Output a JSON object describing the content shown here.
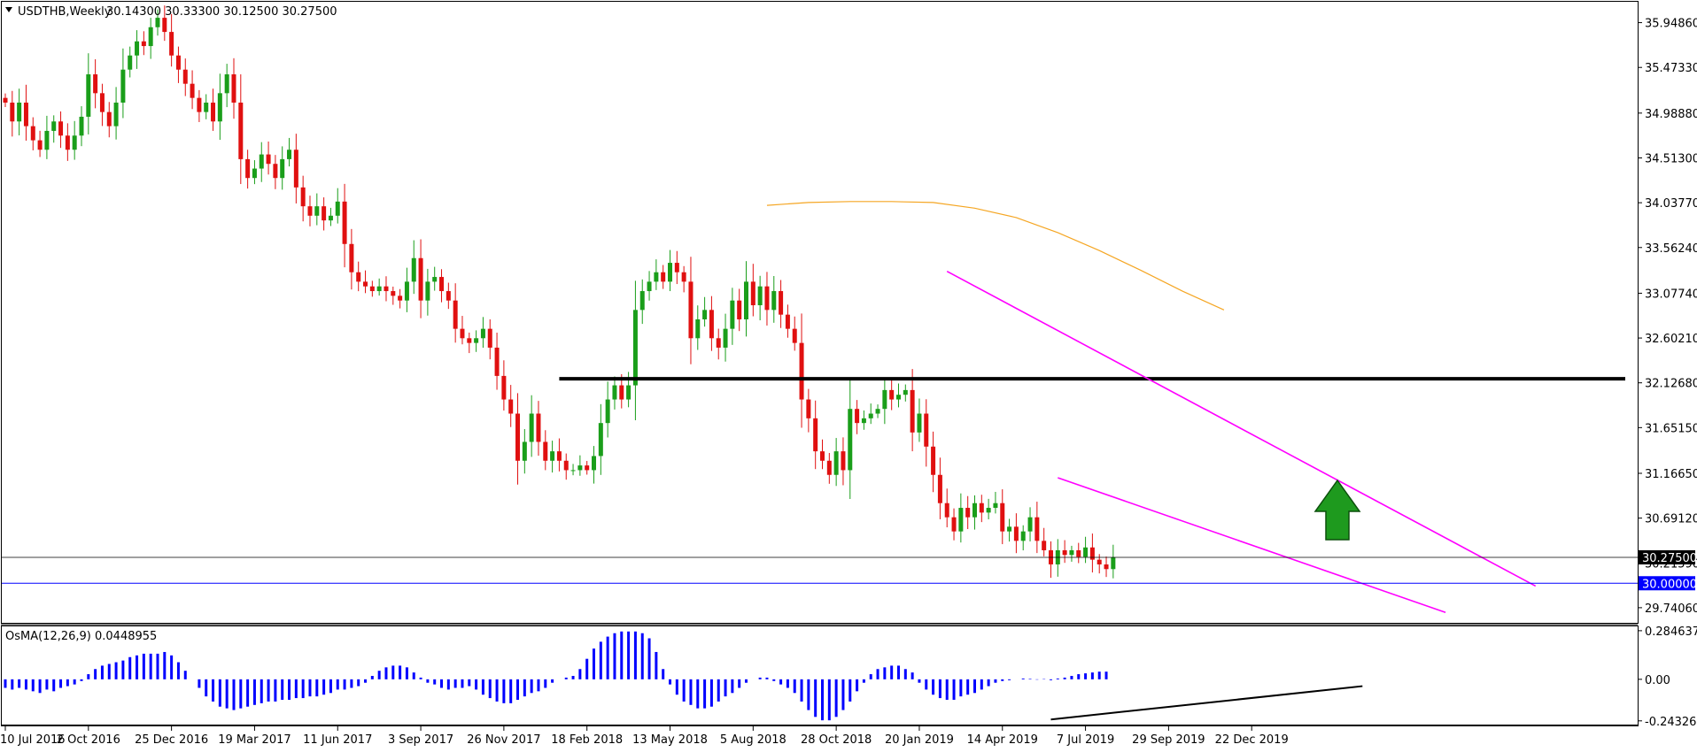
{
  "header": {
    "symbol": "USDTHB,Weekly",
    "ohlc": "30.14300 30.33300 30.12500 30.27500",
    "osma_label": "OsMA(12,26,9) 0.0448955"
  },
  "chart_data": [
    {
      "type": "candlestick",
      "name": "USDTHB,Weekly",
      "x_labels": [
        "10 Jul 2016",
        "2 Oct 2016",
        "25 Dec 2016",
        "19 Mar 2017",
        "11 Jun 2017",
        "3 Sep 2017",
        "26 Nov 2017",
        "18 Feb 2018",
        "13 May 2018",
        "5 Aug 2018",
        "28 Oct 2018",
        "20 Jan 2019",
        "14 Apr 2019",
        "7 Jul 2019",
        "29 Sep 2019",
        "22 Dec 2019"
      ],
      "y_ticks": [
        "35.94860",
        "35.47330",
        "34.98880",
        "34.51300",
        "34.03770",
        "33.56240",
        "33.07740",
        "32.60210",
        "32.12680",
        "31.65150",
        "31.16650",
        "30.69120",
        "30.21590",
        "29.74060"
      ],
      "ylim": [
        29.58,
        36.17
      ],
      "bull_color": "#1a9e1a",
      "bear_color": "#e01010",
      "closes": [
        35.1,
        34.9,
        35.1,
        34.85,
        34.7,
        34.6,
        34.8,
        34.9,
        34.75,
        34.6,
        34.75,
        34.95,
        35.4,
        35.2,
        35.0,
        34.85,
        35.1,
        35.45,
        35.6,
        35.75,
        35.7,
        35.9,
        36.0,
        35.85,
        35.6,
        35.45,
        35.3,
        35.15,
        35.0,
        35.1,
        34.9,
        35.2,
        35.4,
        35.1,
        34.5,
        34.3,
        34.4,
        34.55,
        34.45,
        34.3,
        34.5,
        34.6,
        34.2,
        34.0,
        33.9,
        34.0,
        33.85,
        33.9,
        34.05,
        33.6,
        33.3,
        33.2,
        33.15,
        33.1,
        33.15,
        33.1,
        33.05,
        33.0,
        33.2,
        33.45,
        33.0,
        33.2,
        33.25,
        33.1,
        33.0,
        32.7,
        32.6,
        32.55,
        32.6,
        32.7,
        32.5,
        32.2,
        31.95,
        31.8,
        31.3,
        31.5,
        31.8,
        31.5,
        31.3,
        31.4,
        31.3,
        31.2,
        31.2,
        31.25,
        31.2,
        31.35,
        31.7,
        31.95,
        32.1,
        31.95,
        32.1,
        32.9,
        33.1,
        33.2,
        33.3,
        33.2,
        33.4,
        33.3,
        33.2,
        32.6,
        32.8,
        32.9,
        32.6,
        32.5,
        32.7,
        33.0,
        32.8,
        33.2,
        32.95,
        33.15,
        32.9,
        33.1,
        32.85,
        32.7,
        32.55,
        31.95,
        31.75,
        31.4,
        31.3,
        31.15,
        31.4,
        31.2,
        31.85,
        31.7,
        31.75,
        31.8,
        31.85,
        32.05,
        31.95,
        32.0,
        32.05,
        31.6,
        31.8,
        31.45,
        31.15,
        30.85,
        30.7,
        30.55,
        30.8,
        30.7,
        30.85,
        30.75,
        30.8,
        30.85,
        30.55,
        30.6,
        30.45,
        30.55,
        30.7,
        30.45,
        30.35,
        30.2,
        30.35,
        30.3,
        30.35,
        30.28,
        30.38,
        30.25,
        30.2,
        30.15,
        30.275
      ]
    },
    {
      "type": "line",
      "name": "moving-average",
      "color": "#f5a623",
      "x_weeks": [
        110,
        116,
        122,
        128,
        134,
        140,
        146,
        152,
        158,
        164,
        170,
        176
      ],
      "values": [
        34.01,
        34.04,
        34.05,
        34.05,
        34.04,
        33.98,
        33.88,
        33.72,
        33.53,
        33.32,
        33.1,
        32.9
      ]
    },
    {
      "type": "histogram",
      "name": "OsMA(12,26,9)",
      "value": 0.0448955,
      "color": "#0000ff",
      "y_ticks": [
        "0.2846379",
        "0.00",
        "-0.2432632"
      ],
      "ylim": [
        -0.265,
        0.31
      ],
      "values": [
        -0.05,
        -0.06,
        -0.05,
        -0.06,
        -0.07,
        -0.08,
        -0.06,
        -0.07,
        -0.05,
        -0.04,
        -0.03,
        -0.01,
        0.03,
        0.06,
        0.08,
        0.09,
        0.1,
        0.11,
        0.13,
        0.14,
        0.15,
        0.15,
        0.15,
        0.16,
        0.14,
        0.1,
        0.05,
        0.0,
        -0.05,
        -0.1,
        -0.13,
        -0.16,
        -0.17,
        -0.18,
        -0.17,
        -0.16,
        -0.15,
        -0.14,
        -0.13,
        -0.13,
        -0.12,
        -0.12,
        -0.11,
        -0.11,
        -0.1,
        -0.1,
        -0.09,
        -0.08,
        -0.06,
        -0.06,
        -0.05,
        -0.04,
        -0.02,
        0.02,
        0.05,
        0.07,
        0.08,
        0.08,
        0.07,
        0.04,
        0.01,
        -0.02,
        -0.03,
        -0.05,
        -0.06,
        -0.05,
        -0.05,
        -0.04,
        -0.06,
        -0.09,
        -0.11,
        -0.13,
        -0.14,
        -0.14,
        -0.12,
        -0.1,
        -0.08,
        -0.07,
        -0.05,
        -0.02,
        0.0,
        0.01,
        0.02,
        0.06,
        0.12,
        0.18,
        0.22,
        0.25,
        0.27,
        0.28,
        0.28,
        0.28,
        0.27,
        0.24,
        0.16,
        0.06,
        -0.03,
        -0.09,
        -0.13,
        -0.15,
        -0.17,
        -0.17,
        -0.16,
        -0.13,
        -0.1,
        -0.08,
        -0.05,
        -0.02,
        0.0,
        0.01,
        0.01,
        -0.01,
        -0.03,
        -0.05,
        -0.08,
        -0.13,
        -0.18,
        -0.22,
        -0.24,
        -0.24,
        -0.22,
        -0.18,
        -0.13,
        -0.07,
        -0.02,
        0.03,
        0.06,
        0.07,
        0.08,
        0.08,
        0.06,
        0.04,
        -0.02,
        -0.06,
        -0.09,
        -0.11,
        -0.12,
        -0.12,
        -0.1,
        -0.09,
        -0.08,
        -0.06,
        -0.04,
        -0.02,
        -0.01,
        -0.005,
        0.0,
        0.005,
        0.003,
        -0.002,
        0.002,
        -0.005,
        0.005,
        0.01,
        0.02,
        0.03,
        0.035,
        0.04,
        0.045,
        0.0449
      ]
    }
  ],
  "annotations": {
    "resistance_level": 32.17,
    "resistance_color": "#000000",
    "current_price_label": "30.27500",
    "current_price": 30.275,
    "level_label": "30.00000",
    "level": 30.0,
    "level_color": "#0000ff",
    "channel_color": "#ff00ff",
    "channel_upper": {
      "from_week": 136,
      "from_price": 33.31,
      "to_week": 221,
      "to_price": 29.97
    },
    "channel_lower": {
      "from_week": 152,
      "from_price": 31.12,
      "to_week": 208,
      "to_price": 29.69
    },
    "osma_trendline": {
      "from_week": 151,
      "from_value": -0.235,
      "to_week": 196,
      "to_value": -0.04
    },
    "arrow_color": "#1e9a1e",
    "arrow_direction": "up"
  }
}
